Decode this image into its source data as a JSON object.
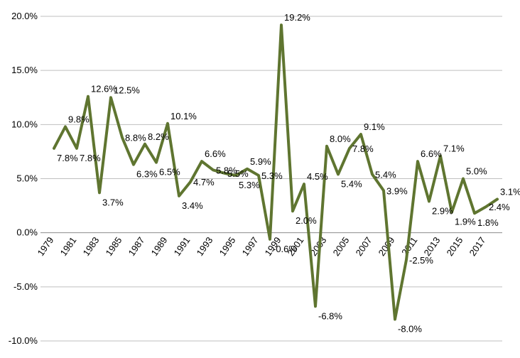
{
  "chart_data": {
    "type": "line",
    "title": "",
    "xlabel": "",
    "ylabel": "",
    "ylim": [
      -10,
      20
    ],
    "y_tick_step": 5,
    "y_tick_labels": [
      "-10.0%",
      "-5.0%",
      "0.0%",
      "5.0%",
      "10.0%",
      "15.0%",
      "20.0%"
    ],
    "x_tick_labels": [
      "1979",
      "1981",
      "1983",
      "1985",
      "1987",
      "1989",
      "1991",
      "1993",
      "1995",
      "1997",
      "1999",
      "2001",
      "2003",
      "2005",
      "2007",
      "2009",
      "2011",
      "2013",
      "2015",
      "2017"
    ],
    "x": [
      1979,
      1980,
      1981,
      1982,
      1983,
      1984,
      1985,
      1986,
      1987,
      1988,
      1989,
      1990,
      1991,
      1992,
      1993,
      1994,
      1995,
      1996,
      1997,
      1998,
      1999,
      2000,
      2001,
      2002,
      2003,
      2004,
      2005,
      2006,
      2007,
      2008,
      2009,
      2010,
      2011,
      2012,
      2013,
      2014,
      2015,
      2016,
      2017,
      2018
    ],
    "grid": "horizontal",
    "legend": "none",
    "line_color": "#5f7530",
    "series": [
      {
        "values": [
          7.8,
          9.8,
          7.8,
          12.6,
          3.7,
          12.5,
          8.8,
          6.3,
          8.2,
          6.5,
          10.1,
          3.4,
          4.7,
          6.6,
          5.8,
          5.5,
          5.3,
          5.9,
          5.3,
          -0.6,
          19.2,
          2.0,
          4.5,
          -6.8,
          8.0,
          5.4,
          7.8,
          9.1,
          5.4,
          3.9,
          -8.0,
          -2.5,
          6.6,
          2.9,
          7.1,
          1.9,
          5.0,
          1.8,
          2.4,
          3.1
        ],
        "labels": [
          "7.8%",
          "9.8%",
          "7.8%",
          "12.6%",
          "3.7%",
          "12.5%",
          "8.8%",
          "6.3%",
          "8.2%",
          "6.5%",
          "10.1%",
          "3.4%",
          "4.7%",
          "6.6%",
          "5.8%",
          "5.5%",
          "5.3%",
          "5.9%",
          "5.3%",
          "-0.6%",
          "19.2%",
          "2.0%",
          "4.5%",
          "-6.8%",
          "8.0%",
          "5.4%",
          "7.8%",
          "9.1%",
          "5.4%",
          "3.9%",
          "-8.0%",
          "-2.5%",
          "6.6%",
          "2.9%",
          "7.1%",
          "1.9%",
          "5.0%",
          "1.8%",
          "2.4%",
          "3.1%"
        ]
      }
    ]
  }
}
